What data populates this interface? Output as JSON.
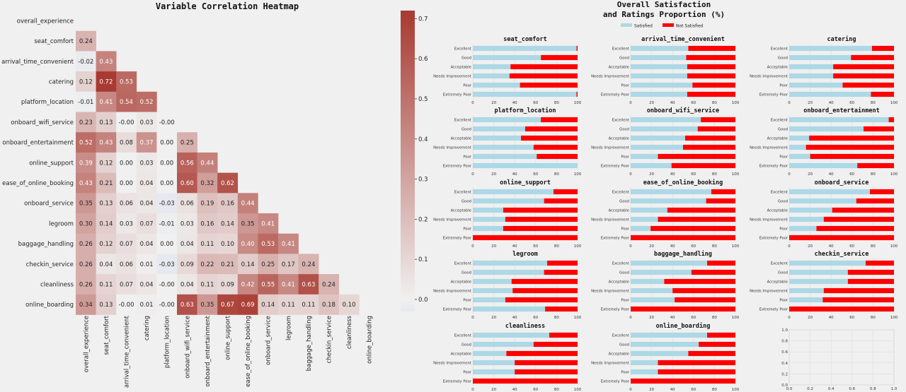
{
  "chart_data": [
    {
      "type": "heatmap",
      "title": "Variable Correlation Heatmap",
      "variables": [
        "overall_experience",
        "seat_comfort",
        "arrival_time_convenient",
        "catering",
        "platform_location",
        "onboard_wifi_service",
        "onboard_entertainment",
        "online_support",
        "ease_of_online_booking",
        "onboard_service",
        "legroom",
        "baggage_handling",
        "checkin_service",
        "cleanliness",
        "online_boarding"
      ],
      "lower_triangle": [
        [],
        [
          0.24
        ],
        [
          -0.02,
          0.43
        ],
        [
          0.12,
          0.72,
          0.53
        ],
        [
          -0.01,
          0.41,
          0.54,
          0.52
        ],
        [
          0.23,
          0.13,
          -0.0,
          0.03,
          -0.0
        ],
        [
          0.52,
          0.43,
          0.08,
          0.37,
          0.0,
          0.25
        ],
        [
          0.39,
          0.12,
          0.0,
          0.03,
          0.0,
          0.56,
          0.44
        ],
        [
          0.43,
          0.21,
          0.0,
          0.04,
          0.0,
          0.6,
          0.32,
          0.62
        ],
        [
          0.35,
          0.13,
          0.06,
          0.04,
          -0.03,
          0.06,
          0.19,
          0.16,
          0.44
        ],
        [
          0.3,
          0.14,
          0.03,
          0.07,
          -0.01,
          0.03,
          0.16,
          0.14,
          0.35,
          0.41
        ],
        [
          0.26,
          0.12,
          0.07,
          0.04,
          0.0,
          0.04,
          0.11,
          0.1,
          0.4,
          0.53,
          0.41
        ],
        [
          0.26,
          0.04,
          0.06,
          0.01,
          -0.03,
          0.09,
          0.22,
          0.21,
          0.14,
          0.25,
          0.17,
          0.24
        ],
        [
          0.26,
          0.11,
          0.07,
          0.04,
          -0.0,
          0.04,
          0.11,
          0.09,
          0.42,
          0.55,
          0.41,
          0.63,
          0.24
        ],
        [
          0.34,
          0.13,
          -0.0,
          0.01,
          -0.0,
          0.63,
          0.35,
          0.67,
          0.69,
          0.14,
          0.11,
          0.11,
          0.18,
          0.1
        ]
      ],
      "colorbar": {
        "ticks": [
          "0.0",
          "0.1",
          "0.2",
          "0.3",
          "0.4",
          "0.5",
          "0.6",
          "0.7"
        ],
        "range": [
          -0.03,
          0.72
        ],
        "low_color": "#e6e9ef",
        "mid_color": "#f0f0f0",
        "high_color": "#a83a31"
      }
    },
    {
      "type": "bar",
      "orientation": "horizontal-stacked-100",
      "title_lines": [
        "Overall Satisfaction",
        "and Ratings Proportion (%)"
      ],
      "legend": [
        {
          "name": "Satisfied",
          "color": "#add8e6"
        },
        {
          "name": "Not Satisfied",
          "color": "#ff0000"
        }
      ],
      "categories": [
        "Excellent",
        "Good",
        "Acceptable",
        "Needs Improvement",
        "Poor",
        "Extremely Poor"
      ],
      "x_ticks": [
        "0",
        "20",
        "40",
        "60",
        "80",
        "100"
      ],
      "panels": [
        {
          "title": "seat_comfort",
          "satisfied": [
            99,
            65,
            36,
            35,
            45,
            99
          ]
        },
        {
          "title": "arrival_time_convenient",
          "satisfied": [
            55,
            53,
            54,
            54,
            59,
            54
          ]
        },
        {
          "title": "catering",
          "satisfied": [
            79,
            59,
            42,
            42,
            51,
            78
          ]
        },
        {
          "title": "platform_location",
          "satisfied": [
            65,
            50,
            46,
            58,
            61,
            100
          ]
        },
        {
          "title": "onboard_wifi_service",
          "satisfied": [
            67,
            64,
            52,
            50,
            26,
            39
          ]
        },
        {
          "title": "onboard_entertainment",
          "satisfied": [
            95,
            71,
            19,
            16,
            20,
            65
          ]
        },
        {
          "title": "online_support",
          "satisfied": [
            77,
            68,
            29,
            31,
            29,
            0
          ]
        },
        {
          "title": "ease_of_online_booking",
          "satisfied": [
            77,
            72,
            35,
            26,
            19,
            0
          ]
        },
        {
          "title": "onboard_service",
          "satisfied": [
            77,
            64,
            41,
            33,
            26,
            0
          ]
        },
        {
          "title": "legroom",
          "satisfied": [
            71,
            68,
            37,
            38,
            31,
            69
          ]
        },
        {
          "title": "baggage_handling",
          "satisfied": [
            73,
            58,
            32,
            40,
            42,
            0
          ]
        },
        {
          "title": "checkin_service",
          "satisfied": [
            73,
            56,
            56,
            33,
            32,
            0
          ]
        },
        {
          "title": "cleanliness",
          "satisfied": [
            73,
            58,
            32,
            40,
            40,
            0
          ]
        },
        {
          "title": "online_boarding",
          "satisfied": [
            73,
            65,
            55,
            26,
            26,
            0
          ]
        }
      ]
    },
    {
      "type": "empty-axes",
      "x_ticks": [
        "0.0",
        "0.2",
        "0.4",
        "0.6",
        "0.8",
        "1.0"
      ],
      "y_ticks": [
        "0.0",
        "0.2",
        "0.4",
        "0.6",
        "0.8",
        "1.0"
      ]
    }
  ]
}
